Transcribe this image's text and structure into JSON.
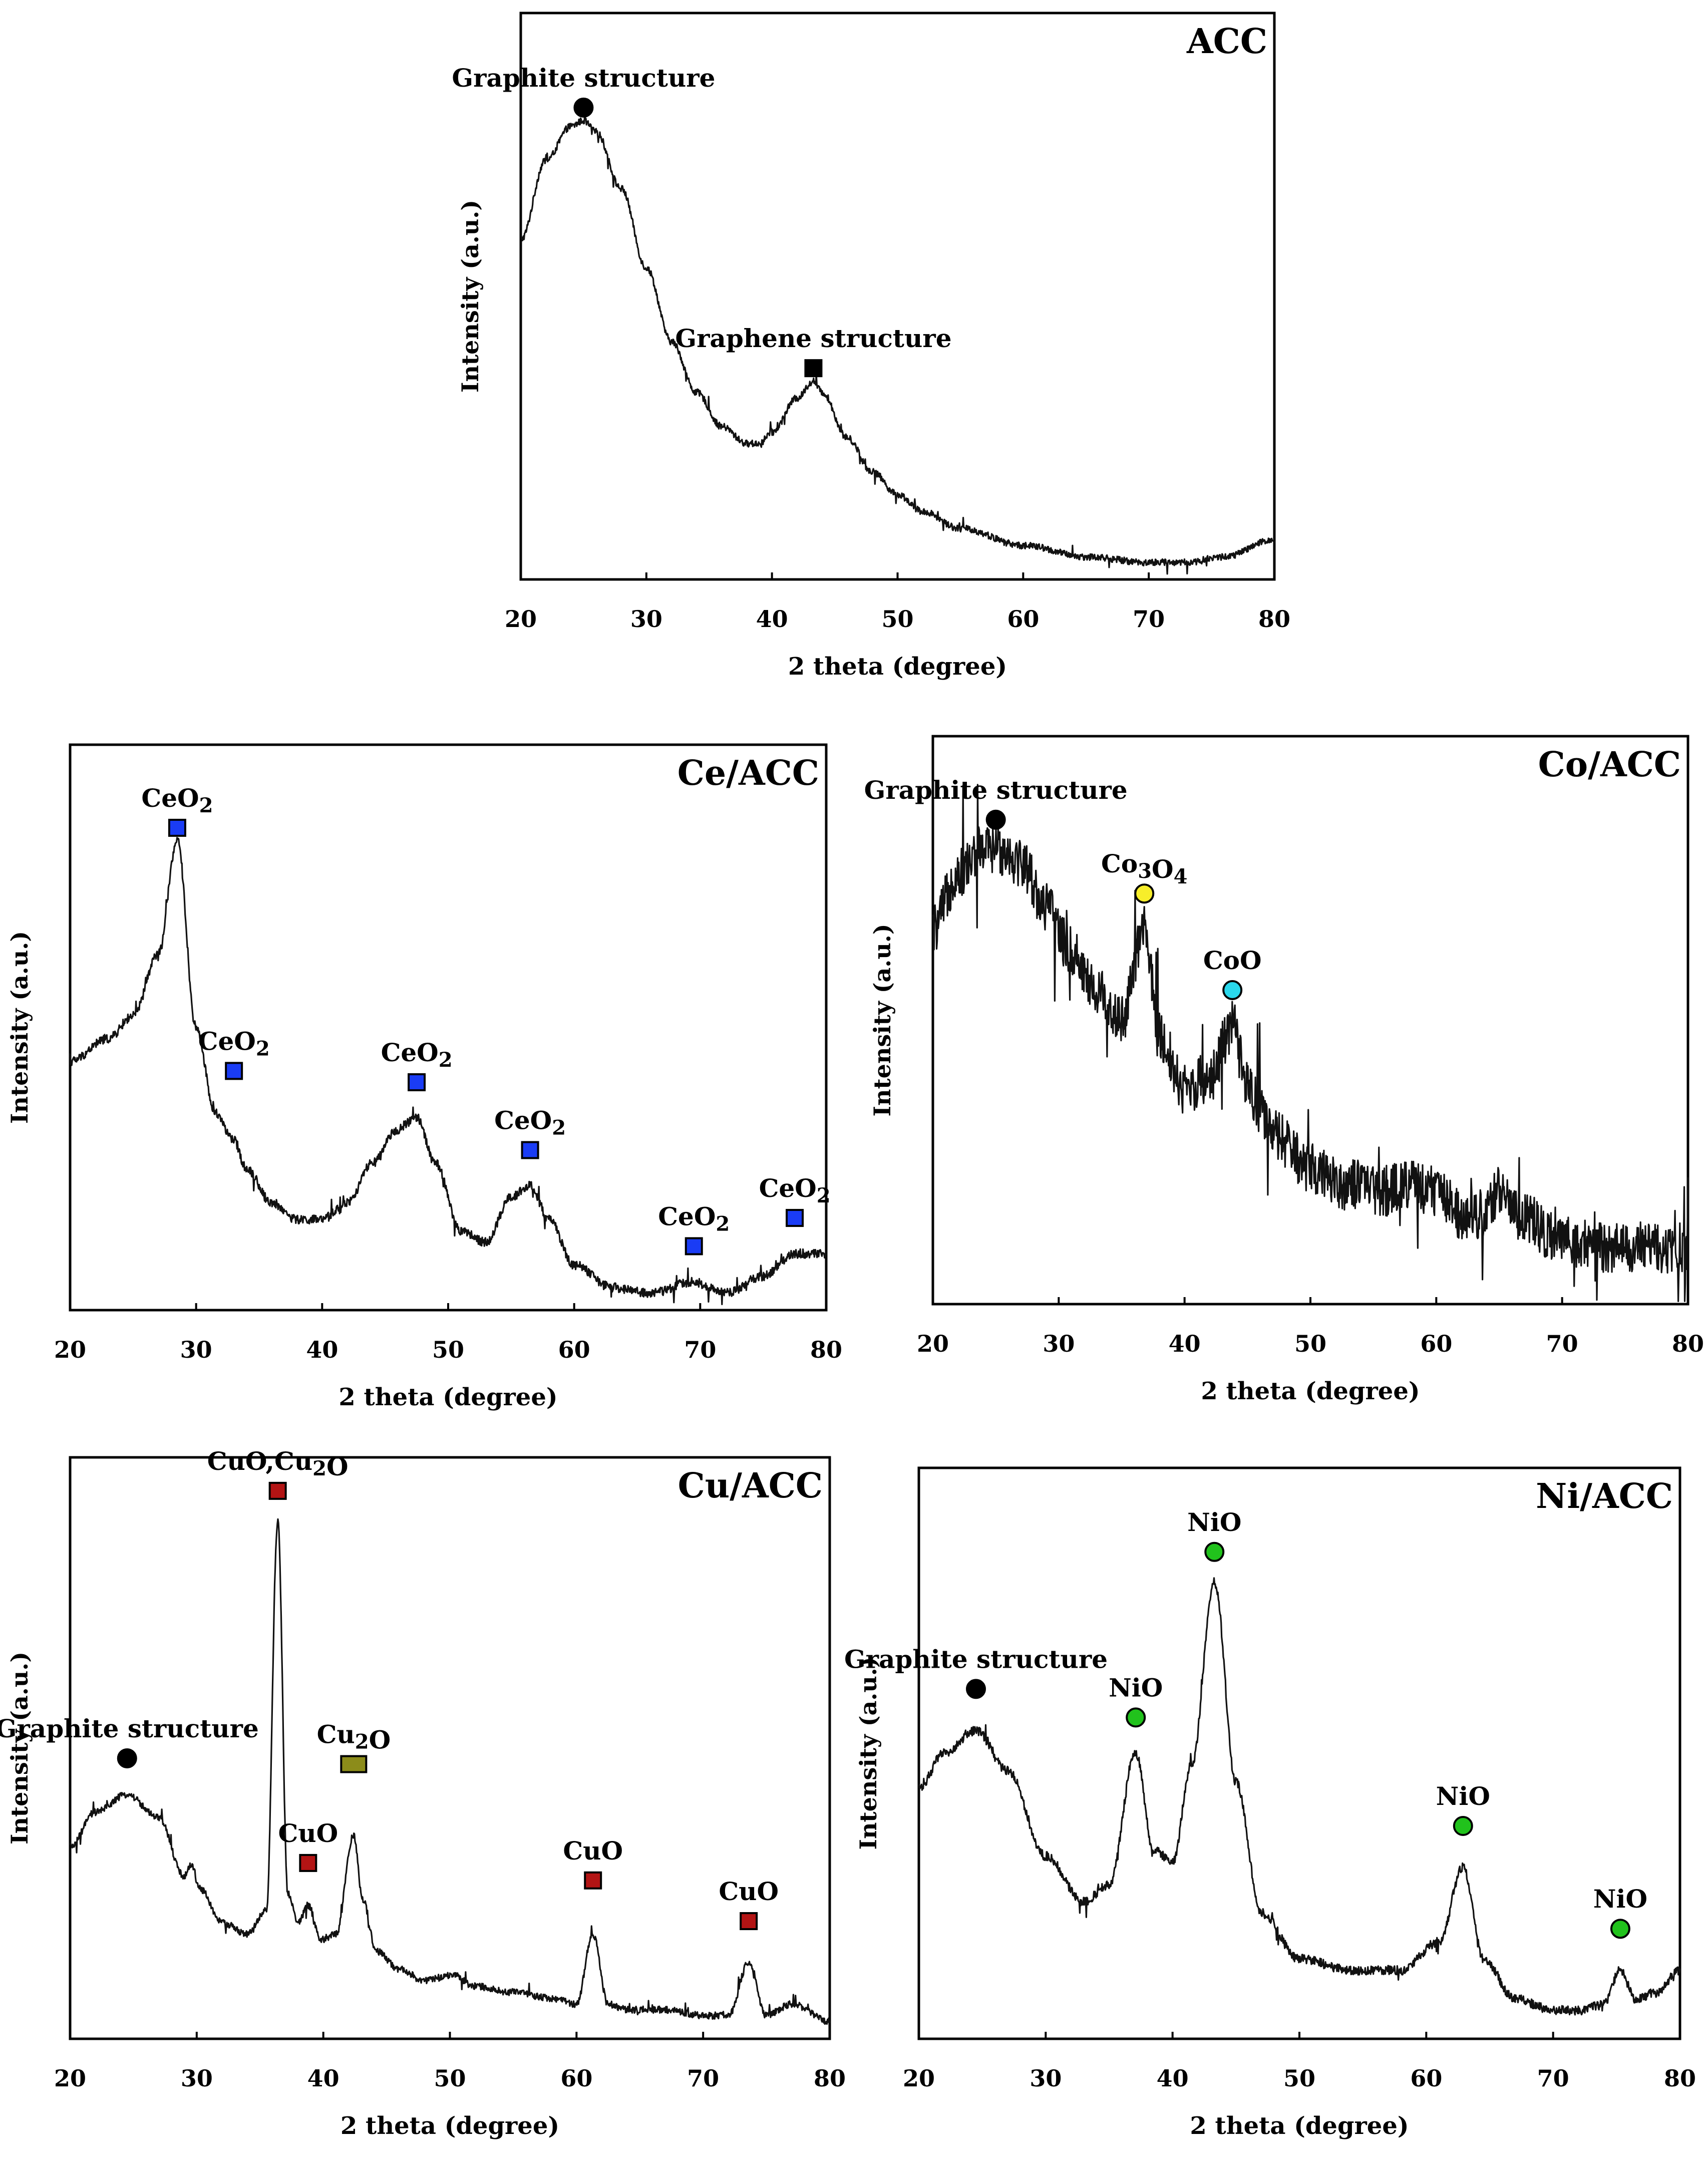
{
  "figure": {
    "layout": "five XRD panels: one centered on top, two rows of two below"
  },
  "chart_data": [
    {
      "panel": "ACC",
      "type": "line",
      "title": "ACC",
      "xlabel": "2 theta (degree)",
      "ylabel": "Intensity (a.u.)",
      "xlim": [
        20,
        80
      ],
      "ylim": [
        0,
        1
      ],
      "xticks": [
        20,
        30,
        40,
        50,
        60,
        70,
        80
      ],
      "noise": 0.006,
      "series": [
        {
          "name": "ACC pattern",
          "x": [
            20,
            22,
            24,
            25,
            26,
            28,
            30,
            32,
            34,
            36,
            38,
            39,
            40,
            42,
            43.3,
            44,
            46,
            48,
            50,
            52,
            55,
            60,
            65,
            70,
            73,
            76,
            80
          ],
          "y": [
            0.6,
            0.74,
            0.8,
            0.81,
            0.79,
            0.69,
            0.55,
            0.42,
            0.33,
            0.27,
            0.24,
            0.24,
            0.26,
            0.32,
            0.35,
            0.33,
            0.25,
            0.19,
            0.15,
            0.12,
            0.09,
            0.06,
            0.04,
            0.03,
            0.03,
            0.04,
            0.07
          ]
        }
      ],
      "annotations": [
        {
          "label": "Graphite structure",
          "x": 25,
          "y": 0.81,
          "marker": "circle",
          "color": "#000000"
        },
        {
          "label": "Graphene structure",
          "x": 43.3,
          "y": 0.35,
          "marker": "square",
          "color": "#000000"
        }
      ]
    },
    {
      "panel": "Ce/ACC",
      "type": "line",
      "title": "Ce/ACC",
      "xlabel": "2 theta (degree)",
      "ylabel": "Intensity (a.u.)",
      "xlim": [
        20,
        80
      ],
      "ylim": [
        0,
        1
      ],
      "xticks": [
        20,
        30,
        40,
        50,
        60,
        70,
        80
      ],
      "noise": 0.008,
      "series": [
        {
          "name": "Ce/ACC pattern",
          "x": [
            20,
            23,
            25,
            27,
            28.5,
            30,
            31.5,
            33,
            34,
            36,
            38,
            40,
            42,
            44,
            46,
            47.5,
            49,
            51,
            53,
            55,
            56.5,
            58,
            60,
            63,
            66,
            69.5,
            72,
            75,
            77.5,
            80
          ],
          "y": [
            0.44,
            0.48,
            0.52,
            0.63,
            0.83,
            0.5,
            0.35,
            0.3,
            0.25,
            0.19,
            0.16,
            0.16,
            0.19,
            0.26,
            0.32,
            0.34,
            0.26,
            0.14,
            0.12,
            0.2,
            0.22,
            0.16,
            0.08,
            0.04,
            0.03,
            0.05,
            0.03,
            0.06,
            0.1,
            0.1
          ]
        }
      ],
      "annotations": [
        {
          "label": "CeO₂",
          "x": 28.5,
          "y": 0.83,
          "marker": "square",
          "color": "#1a3cf5"
        },
        {
          "label": "CeO₂",
          "x": 33,
          "y": 0.4,
          "marker": "square",
          "color": "#1a3cf5"
        },
        {
          "label": "CeO₂",
          "x": 47.5,
          "y": 0.38,
          "marker": "square",
          "color": "#1a3cf5"
        },
        {
          "label": "CeO₂",
          "x": 56.5,
          "y": 0.26,
          "marker": "square",
          "color": "#1a3cf5"
        },
        {
          "label": "CeO₂",
          "x": 69.5,
          "y": 0.09,
          "marker": "square",
          "color": "#1a3cf5"
        },
        {
          "label": "CeO₂",
          "x": 77.5,
          "y": 0.14,
          "marker": "square",
          "color": "#1a3cf5"
        }
      ]
    },
    {
      "panel": "Co/ACC",
      "type": "line",
      "title": "Co/ACC",
      "xlabel": "2 theta (degree)",
      "ylabel": "Intensity (a.u.)",
      "xlim": [
        20,
        80
      ],
      "ylim": [
        0,
        1
      ],
      "xticks": [
        20,
        30,
        40,
        50,
        60,
        70,
        80
      ],
      "noise": 0.045,
      "series": [
        {
          "name": "Co/ACC pattern",
          "x": [
            20,
            22,
            24,
            25.5,
            27,
            29,
            31,
            33,
            35,
            36.8,
            38,
            40,
            42,
            43.8,
            45,
            47,
            50,
            53,
            56,
            58,
            60,
            62,
            64,
            65,
            67,
            70,
            73,
            76,
            80
          ],
          "y": [
            0.66,
            0.76,
            0.8,
            0.8,
            0.78,
            0.7,
            0.62,
            0.55,
            0.5,
            0.66,
            0.47,
            0.38,
            0.4,
            0.49,
            0.38,
            0.3,
            0.24,
            0.21,
            0.2,
            0.21,
            0.2,
            0.16,
            0.16,
            0.2,
            0.15,
            0.11,
            0.1,
            0.1,
            0.1
          ]
        }
      ],
      "annotations": [
        {
          "label": "Graphite structure",
          "x": 25,
          "y": 0.83,
          "marker": "circle",
          "color": "#000000"
        },
        {
          "label": "Co₃O₄",
          "x": 36.8,
          "y": 0.7,
          "marker": "circle",
          "color": "#f7ee2a"
        },
        {
          "label": "CoO",
          "x": 43.8,
          "y": 0.53,
          "marker": "circle",
          "color": "#2ad8ec"
        }
      ]
    },
    {
      "panel": "Cu/ACC",
      "type": "line",
      "title": "Cu/ACC",
      "xlabel": "2 theta (degree)",
      "ylabel": "Intensity (a.u.)",
      "xlim": [
        20,
        80
      ],
      "ylim": [
        0,
        1
      ],
      "xticks": [
        20,
        30,
        40,
        50,
        60,
        70,
        80
      ],
      "noise": 0.006,
      "series": [
        {
          "name": "Cu/ACC pattern",
          "x": [
            20,
            22,
            24.5,
            27,
            29,
            29.6,
            30.2,
            32,
            34,
            35.5,
            36.4,
            37.2,
            38,
            38.8,
            39.8,
            41,
            42.4,
            43.1,
            44.2,
            46,
            48,
            50.2,
            52,
            55,
            58,
            60,
            61.3,
            62.5,
            64,
            67,
            70,
            72,
            73.6,
            75,
            77,
            80
          ],
          "y": [
            0.33,
            0.39,
            0.42,
            0.38,
            0.28,
            0.3,
            0.26,
            0.2,
            0.18,
            0.22,
            0.89,
            0.25,
            0.2,
            0.23,
            0.17,
            0.18,
            0.35,
            0.24,
            0.15,
            0.12,
            0.1,
            0.11,
            0.09,
            0.08,
            0.07,
            0.06,
            0.18,
            0.06,
            0.05,
            0.05,
            0.04,
            0.04,
            0.13,
            0.04,
            0.06,
            0.03
          ]
        }
      ],
      "annotations": [
        {
          "label": "CuO,Cu₂O",
          "x": 36.4,
          "y": 0.92,
          "marker": "square",
          "color": "#b31414"
        },
        {
          "label": "Graphite structure",
          "x": 24.5,
          "y": 0.46,
          "marker": "circle",
          "color": "#000000"
        },
        {
          "label": "Cu₂O",
          "x": 42.4,
          "y": 0.45,
          "marker": "square",
          "color": "#8c8c1a",
          "wide": true
        },
        {
          "label": "CuO",
          "x": 38.8,
          "y": 0.28,
          "marker": "square",
          "color": "#b31414"
        },
        {
          "label": "CuO",
          "x": 61.3,
          "y": 0.25,
          "marker": "square",
          "color": "#b31414"
        },
        {
          "label": "CuO",
          "x": 73.6,
          "y": 0.18,
          "marker": "square",
          "color": "#b31414"
        }
      ]
    },
    {
      "panel": "Ni/ACC",
      "type": "line",
      "title": "Ni/ACC",
      "xlabel": "2 theta (degree)",
      "ylabel": "Intensity (a.u.)",
      "xlim": [
        20,
        80
      ],
      "ylim": [
        0,
        1
      ],
      "xticks": [
        20,
        30,
        40,
        50,
        60,
        70,
        80
      ],
      "noise": 0.008,
      "series": [
        {
          "name": "Ni/ACC pattern",
          "x": [
            20,
            22,
            24.5,
            27,
            30,
            33,
            35,
            37.1,
            38.5,
            40,
            41.5,
            43.3,
            45,
            47,
            50,
            54,
            58,
            61,
            62.9,
            64.5,
            67,
            70,
            72,
            74,
            75.3,
            76.5,
            78,
            80
          ],
          "y": [
            0.44,
            0.5,
            0.54,
            0.47,
            0.32,
            0.24,
            0.27,
            0.5,
            0.33,
            0.31,
            0.48,
            0.8,
            0.45,
            0.22,
            0.14,
            0.12,
            0.12,
            0.17,
            0.3,
            0.14,
            0.07,
            0.05,
            0.05,
            0.06,
            0.12,
            0.07,
            0.08,
            0.12
          ]
        }
      ],
      "annotations": [
        {
          "label": "NiO",
          "x": 43.3,
          "y": 0.83,
          "marker": "circle",
          "color": "#21c21c"
        },
        {
          "label": "Graphite structure",
          "x": 24.5,
          "y": 0.59,
          "marker": "circle",
          "color": "#000000"
        },
        {
          "label": "NiO",
          "x": 37.1,
          "y": 0.54,
          "marker": "circle",
          "color": "#21c21c"
        },
        {
          "label": "NiO",
          "x": 62.9,
          "y": 0.35,
          "marker": "circle",
          "color": "#21c21c"
        },
        {
          "label": "NiO",
          "x": 75.3,
          "y": 0.17,
          "marker": "circle",
          "color": "#21c21c"
        }
      ]
    }
  ]
}
